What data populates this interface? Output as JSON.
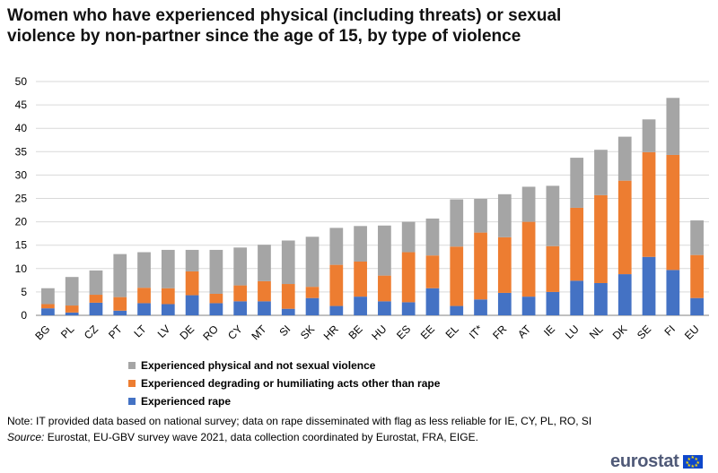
{
  "title": "Women who have experienced physical (including threats) or sexual violence by non-partner since the age of 15, by type of violence",
  "note": "Note: IT provided data based on national survey; data on rape disseminated with flag as less reliable for IE, CY, PL, RO, SI",
  "source_label": "Source:",
  "source_text": " Eurostat, EU-GBV survey wave 2021, data collection coordinated by Eurostat, FRA, EIGE.",
  "logo_text": "eurostat",
  "colors": {
    "physical": "#a5a5a5",
    "degrading": "#ed7d31",
    "rape": "#4472c4"
  },
  "legend": [
    {
      "label": "Experienced physical and not sexual violence",
      "color": "#a5a5a5"
    },
    {
      "label": "Experienced degrading or humiliating acts other than rape",
      "color": "#ed7d31"
    },
    {
      "label": "Experienced rape",
      "color": "#4472c4"
    }
  ],
  "chart_data": {
    "type": "bar",
    "stacked": true,
    "ylim": [
      0,
      50
    ],
    "yticks": [
      0,
      5,
      10,
      15,
      20,
      25,
      30,
      35,
      40,
      45,
      50
    ],
    "grid": true,
    "legend_position": "bottom",
    "categories": [
      "BG",
      "PL",
      "CZ",
      "PT",
      "LT",
      "LV",
      "DE",
      "RO",
      "CY",
      "MT",
      "SI",
      "SK",
      "HR",
      "BE",
      "HU",
      "ES",
      "EE",
      "EL",
      "IT*",
      "FR",
      "AT",
      "IE",
      "LU",
      "NL",
      "DK",
      "SE",
      "FI",
      "EU"
    ],
    "series": [
      {
        "name": "Experienced rape",
        "color": "#4472c4",
        "values": [
          1.5,
          0.6,
          2.7,
          1.0,
          2.6,
          2.4,
          4.3,
          2.6,
          3.0,
          3.0,
          1.4,
          3.7,
          2.0,
          4.0,
          3.0,
          2.8,
          5.8,
          2.0,
          3.4,
          4.8,
          4.0,
          5.0,
          7.4,
          6.9,
          8.8,
          12.5,
          9.7,
          3.7
        ]
      },
      {
        "name": "Experienced degrading or humiliating acts other than rape",
        "color": "#ed7d31",
        "values": [
          0.9,
          1.5,
          1.7,
          2.9,
          3.3,
          3.4,
          5.1,
          2.0,
          3.4,
          4.3,
          5.3,
          2.4,
          8.8,
          7.5,
          5.5,
          10.7,
          7.0,
          12.7,
          14.3,
          11.9,
          16.0,
          9.8,
          15.6,
          18.8,
          20.0,
          22.4,
          24.6,
          9.2
        ]
      },
      {
        "name": "Experienced physical and not sexual violence",
        "color": "#a5a5a5",
        "values": [
          3.4,
          6.1,
          5.2,
          9.2,
          7.6,
          8.2,
          4.6,
          9.4,
          8.1,
          7.8,
          9.3,
          10.7,
          7.9,
          7.6,
          10.7,
          6.5,
          7.9,
          10.1,
          7.2,
          9.2,
          7.5,
          12.9,
          10.7,
          9.7,
          9.4,
          7.0,
          12.2,
          7.4
        ]
      }
    ]
  }
}
